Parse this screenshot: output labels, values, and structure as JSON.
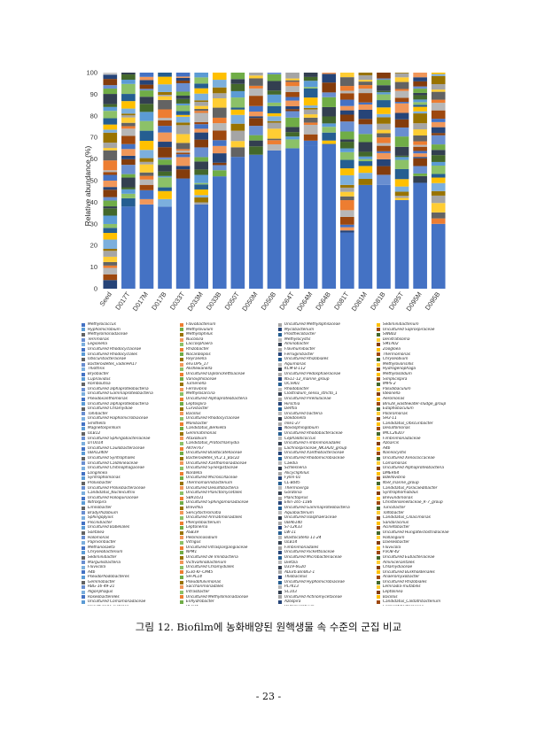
{
  "chart_data": {
    "type": "bar",
    "stacked": true,
    "ylabel": "Relative abundance (%)",
    "xlabel": "",
    "ylim": [
      0,
      100
    ],
    "yticks": [
      0,
      10,
      20,
      30,
      40,
      50,
      60,
      70,
      80,
      90,
      100
    ],
    "grid": false,
    "legend_position": "bottom",
    "categories": [
      "Seed",
      "D017T",
      "D017M",
      "D017B",
      "D033T",
      "D033M",
      "D033B",
      "D050T",
      "D050M",
      "D050B",
      "D064T",
      "D064M",
      "D064B",
      "D081T",
      "D081M",
      "D081B",
      "D095T",
      "D095M",
      "D095B"
    ],
    "bottom_segment_values": [
      4,
      38,
      39,
      38,
      51,
      39,
      52,
      61,
      62,
      64,
      65,
      66,
      67,
      26,
      48,
      48,
      41,
      49,
      30
    ],
    "legend": [
      "Methylococcus",
      "Flavobacterium",
      "Uncultured Methylophilaceae",
      "Sediminibacterium",
      "Hyphomicrobium",
      "Methylovulum",
      "Mycobacterium",
      "Uncultured Saprospiraceae",
      "Methylomonadaceae",
      "Methylophilus",
      "Prosthecobacter",
      "SWB02",
      "Terrimonas",
      "Nucosilia",
      "Methylocystis",
      "Denitratisoma",
      "Legionella",
      "Laccosphaera",
      "Aminobacter",
      "SM1A02",
      "Uncultured Rhodocyclaceae",
      "Rhizobacter",
      "Flavihumibacter",
      "Zoogloea",
      "Uncultured Rhodocyclales",
      "Nocardiopsis",
      "Ferruginibacter",
      "Thermomonas",
      "Obscuribacteraceae",
      "Reyranella",
      "Uncultured Rhizobiales",
      "Chryseobium",
      "Bacteroidetes_vadinHA17",
      "env.OPS_17",
      "Aquimonas",
      "Methylovorisillis",
      "Thiothrix",
      "Alishewanella",
      "KCM-B-112",
      "Hydrogenophaga",
      "Bryobacter",
      "Uncultured Diplorickettsiaceae",
      "Uncultured Pedosphaeraceae",
      "Methylosoldum",
      "Cupriavidus",
      "Variovphilaceae",
      "NS11-12_marine_group",
      "Simplicispira",
      "Romboutsia",
      "Turneriella",
      "OCS901",
      "IMPS-2",
      "Uncultured alphaproteobacteria",
      "Ferrovibrio",
      "Rhodobacter",
      "Paludibaculum",
      "Uncultured Gammaproteobacteria",
      "Methylosarcina",
      "Clostridium_sensu_stricto_1",
      "Ideonella",
      "Pseudoxanthomonas",
      "Uncultured Alphaproteobacteria",
      "Uncultured Pirellulaceae",
      "Aeromonas",
      "Uncultured alphaproteobacteria",
      "Leptospira",
      "Hirschia",
      "BIrii28_wastewater-sludge_group",
      "Uncultured Chlamydiae",
      "Curvibacter",
      "Delftia",
      "Edaphobaculum",
      "Tahibacter",
      "Bacillus",
      "Uncultured bacteria",
      "Polaromonas",
      "Uncultured Haphomicrobiaceae",
      "Uncultured Rhodocyclaceae",
      "Dokdonella",
      "SH3-11",
      "Smithella",
      "Monibacter",
      "mle1-27",
      "Candidatus_Obscuribacter",
      "Magnetospirillum",
      "Candidatus_Berkiella",
      "Novosphingobium",
      "Desulfomonas",
      "OLB12",
      "Gemmatimonas",
      "Uncultured Rhodobacteraceae",
      "IMCC26207",
      "Uncultured Sphingobacteriaceae",
      "Ataxobium",
      "Cephaloticoccus",
      "Fimbriimonadaceae",
      "DTU014",
      "Candidatus_Protochlamydia",
      "Uncultured Fimbriimonadales",
      "Azoarcis",
      "Uncultured Caulobacteraceae",
      "AKYH767",
      "Lachnospiraceae_NK3A20_group",
      "A4b",
      "UBA12409",
      "Uncultured Blastocatellaceae",
      "Uncultured Xanthobacteraceae",
      "Nannocystis",
      "Uncultured Syntrophales",
      "Bacteroidetes_VC2.1_Bac22",
      "Uncultured Rhodomicrobiaceae",
      "Uncultured Xenococcaceae",
      "Uncultured Caldilineaceae",
      "Uncultured Xanthomonadaceae",
      "Caedia",
      "Comamonas",
      "Uncultured Chitinophagaceae",
      "Uncultured Synergistaceae",
      "Schlesneria",
      "Uncultured Alphaproteobacteria",
      "Longilinea",
      "Nordella",
      "Alicycliphilus",
      "DMER64",
      "Syntrophomonas",
      "Uncultured Microscillaceae",
      "Fyllin-01",
      "Bdellovibrio",
      "Prolixibacter",
      "Thermomarinibacterium",
      "CL-B045",
      "NS9_marine_group",
      "Uncultured Prolixibacteraceae",
      "Uncultured Desulfobacteria",
      "Thermovirga",
      "Candidatus_Paracaedibacter",
      "Candidatus_Nucleicultrix",
      "Uncultured Planctomycetales",
      "Gordonia",
      "Syntrophorhabdus",
      "Uncultured Haloquinaceae",
      "SBR1031",
      "Planctopirus",
      "Brevundimonas",
      "Nitrospira",
      "Uncultured Sphingomonadaceae",
      "Ellin-165-1186",
      "Christensenellaceae_R-7_group",
      "Limnobacter",
      "Brevifilia",
      "Uncultured Gammaproteobacteria",
      "Turicibacter",
      "Bradyrhizobium",
      "Sericytochromatia",
      "Aquabacterium",
      "Tolfobacter",
      "Sphingopyxis",
      "Uncultured Armatimonadales",
      "Uncultured Isosphaeraceae",
      "Candidatus_Cloacimonas",
      "Piscinibacter",
      "Phenylobacterium",
      "UBA6140",
      "Sandaracinus",
      "Uncultured Babeliales",
      "Leptonema",
      "ST-12K33",
      "Acinetobacter",
      "Solitalea",
      "ASB39",
      "LW-11",
      "Uncultured Hungateiclostridiaceae",
      "Halomonas",
      "Pelomonasidium",
      "Blastocatella 11-24",
      "Hallangium",
      "Paprvoribacter",
      "Vitrigus",
      "OLB14",
      "Daeseobacter",
      "Methanosaeta",
      "Uncultured Intraspargangiaceae",
      "Fimbriimonadales",
      "Fluviicola",
      "Chryseobacterium",
      "NPM1",
      "Uncultured Rickettsiaceae",
      "P3OB-42",
      "Sediminibacter",
      "Uncultured de Imnibacteria",
      "Uncultured Microbacteriaceae",
      "Uncultured Eubacteriaceae",
      "Marguilisbacteria",
      "Victivallinobacterium",
      "Dietzia",
      "Aminicenantales",
      "Fluviicola",
      "Uncultured Chlamydiales",
      "0319-6G20",
      "Chlamydiaceae",
      "A4b",
      "JG30-KF-CM45",
      "ADurb.Bin063-1",
      "Uncultured Burkholderiales",
      "Pseudorhodobacteres",
      "SH-PL14",
      "Thiobacillus",
      "Anaeromyxobacter",
      "Gemmobacter",
      "Pseudofulvimonas",
      "Uncultured Hyphomicrobiaceae",
      "Uncultured Rhizobiales",
      "RBG-16-49-21",
      "Saccharimonadales",
      "PL7K13",
      "Lemnadia-mutabilis",
      "Algoriphagus",
      "Intrasbacter",
      "SC103",
      "Leptolinea",
      "Roseobactereles",
      "Uncultured Methylomonadaceae",
      "Uncultured Actinomycetaceae",
      "Bacillus",
      "Uncultured Comamonadaceae",
      "Enhydrobacter",
      "Azospira",
      "Candidatus_Caldatribacterium",
      "Uncultured Gaiellales",
      "BSV26",
      "Pedomicrobium",
      "Fermentibacteraceae",
      "Berkiellaceae",
      "Devosia",
      "Vampirovibrionales",
      "SAR324_clade(Marine_group_B)",
      "Uncultured Paenibacillaceae",
      "Uncultured Isosphaeraceae",
      "Babeliaceae",
      "Tsukamurella",
      "Methylobacter",
      "Uncultured Leptospiraceae",
      "Uncultured Parachlamydiaceae",
      "Uncultured Thermoactinomycetaceae",
      "Uncultured Rhodocyclaceae",
      "Roseie",
      "Uncultured Rikenellaceae",
      "Uncultured Chloroflexota",
      "Uncultured Chitinophagaceae",
      "Mesorhizobium",
      "Uncultured Acidobacteriae",
      "Pirellula",
      "Vampirovibrionaceae",
      "RBG-13-54-9",
      "Others(197)"
    ],
    "colors": [
      "#4472C4",
      "#ED7D31",
      "#A5A5A5",
      "#FFC000",
      "#5B9BD5",
      "#70AD47",
      "#264478",
      "#9E480E",
      "#636363",
      "#997300",
      "#255E91",
      "#43682B",
      "#698ED0",
      "#F1975A",
      "#B7B7B7",
      "#FFCD33",
      "#7CAFDD",
      "#8CC168",
      "#333F50",
      "#843C0C"
    ]
  },
  "caption": "그림 12. Biofilm에 농화배양된 원핵생물 속 수준의 군집 비교",
  "page_number": "- 23 -"
}
